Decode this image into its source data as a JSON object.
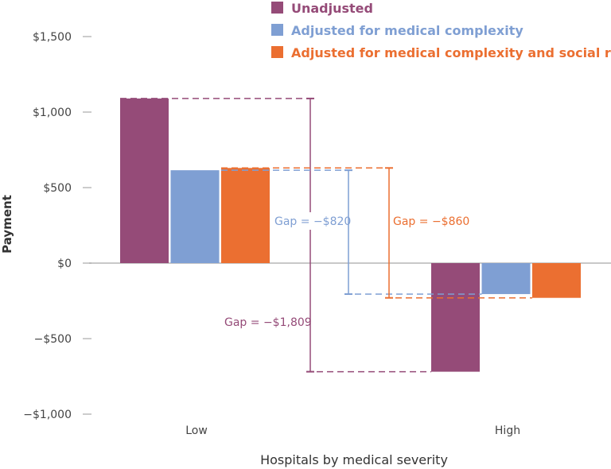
{
  "chart_data": {
    "type": "bar",
    "title": "",
    "xlabel": "Hospitals by medical severity",
    "ylabel": "Payment",
    "categories": [
      "Low",
      "High"
    ],
    "ylim": [
      -1000,
      1500
    ],
    "yticks": [
      1500,
      1000,
      500,
      0,
      -500,
      -1000
    ],
    "ytick_labels": [
      "$1,500",
      "$1,000",
      "$500",
      "$0",
      "−$500",
      "−$1,000"
    ],
    "grid": false,
    "legend_position": "top-right",
    "series": [
      {
        "name": "Unadjusted",
        "values": [
          1090,
          -719
        ],
        "color": "#954b78"
      },
      {
        "name": "Adjusted for medical complexity",
        "values": [
          615,
          -205
        ],
        "color": "#7f9fd3"
      },
      {
        "name": "Adjusted for medical complexity and social risk",
        "values": [
          630,
          -230
        ],
        "color": "#eb6f31"
      }
    ],
    "annotations": [
      {
        "text": "Gap = −$1,809",
        "series": 0
      },
      {
        "text": "Gap = −$820",
        "series": 1
      },
      {
        "text": "Gap = −$860",
        "series": 2
      }
    ]
  }
}
